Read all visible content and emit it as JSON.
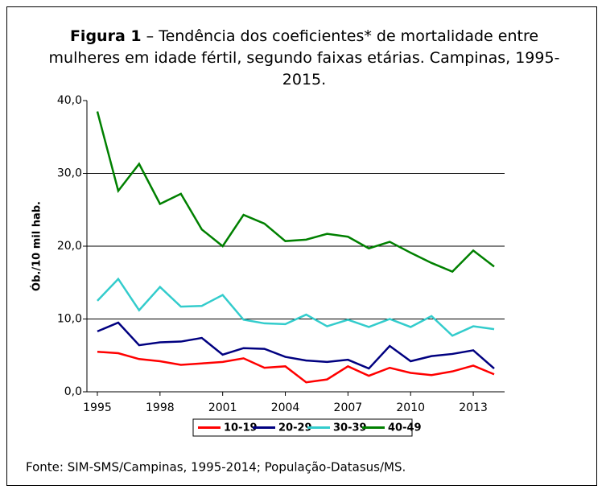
{
  "chart_data": {
    "type": "line",
    "title_label": "Figura 1",
    "title": "– Tendência dos coeficientes* de mortalidade entre mulheres em idade fértil, segundo faixas etárias. Campinas, 1995-2015.",
    "y_label": "Ób./10 mil hab.",
    "source": "Fonte: SIM-SMS/Campinas, 1995-2014; População-Datasus/MS.",
    "x": [
      1995,
      1996,
      1997,
      1998,
      1999,
      2000,
      2001,
      2002,
      2003,
      2004,
      2005,
      2006,
      2007,
      2008,
      2009,
      2010,
      2011,
      2012,
      2013,
      2014
    ],
    "xlim": [
      1994.5,
      2014.5
    ],
    "xticks": [
      1995,
      1998,
      2001,
      2004,
      2007,
      2010,
      2013
    ],
    "ylim": [
      0,
      40
    ],
    "yticks": [
      {
        "value": 0,
        "label": "0,0"
      },
      {
        "value": 10,
        "label": "10,0"
      },
      {
        "value": 20,
        "label": "20,0"
      },
      {
        "value": 30,
        "label": "30,0"
      },
      {
        "value": 40,
        "label": "40,0"
      }
    ],
    "grid": true,
    "legend": "bottom",
    "series": [
      {
        "name": "10-19",
        "color": "#ff0000",
        "values": [
          5.5,
          5.3,
          4.5,
          4.2,
          3.7,
          3.9,
          4.1,
          4.6,
          3.3,
          3.5,
          1.3,
          1.7,
          3.5,
          2.2,
          3.3,
          2.6,
          2.3,
          2.8,
          3.6,
          2.4
        ]
      },
      {
        "name": "20-29",
        "color": "#000080",
        "values": [
          8.3,
          9.5,
          6.4,
          6.8,
          6.9,
          7.4,
          5.1,
          6.0,
          5.9,
          4.8,
          4.3,
          4.1,
          4.4,
          3.2,
          6.3,
          4.2,
          4.9,
          5.2,
          5.7,
          3.2
        ]
      },
      {
        "name": "30-39",
        "color": "#33cccc",
        "values": [
          12.5,
          15.5,
          11.2,
          14.4,
          11.7,
          11.8,
          13.3,
          9.9,
          9.4,
          9.3,
          10.6,
          9.0,
          9.9,
          8.9,
          10.0,
          8.9,
          10.4,
          7.7,
          9.0,
          8.6
        ]
      },
      {
        "name": "40-49",
        "color": "#008000",
        "values": [
          38.5,
          27.6,
          31.3,
          25.8,
          27.2,
          22.3,
          20.0,
          24.3,
          23.1,
          20.7,
          20.9,
          21.7,
          21.3,
          19.7,
          20.6,
          19.1,
          17.7,
          16.5,
          19.4,
          17.2
        ]
      }
    ]
  }
}
